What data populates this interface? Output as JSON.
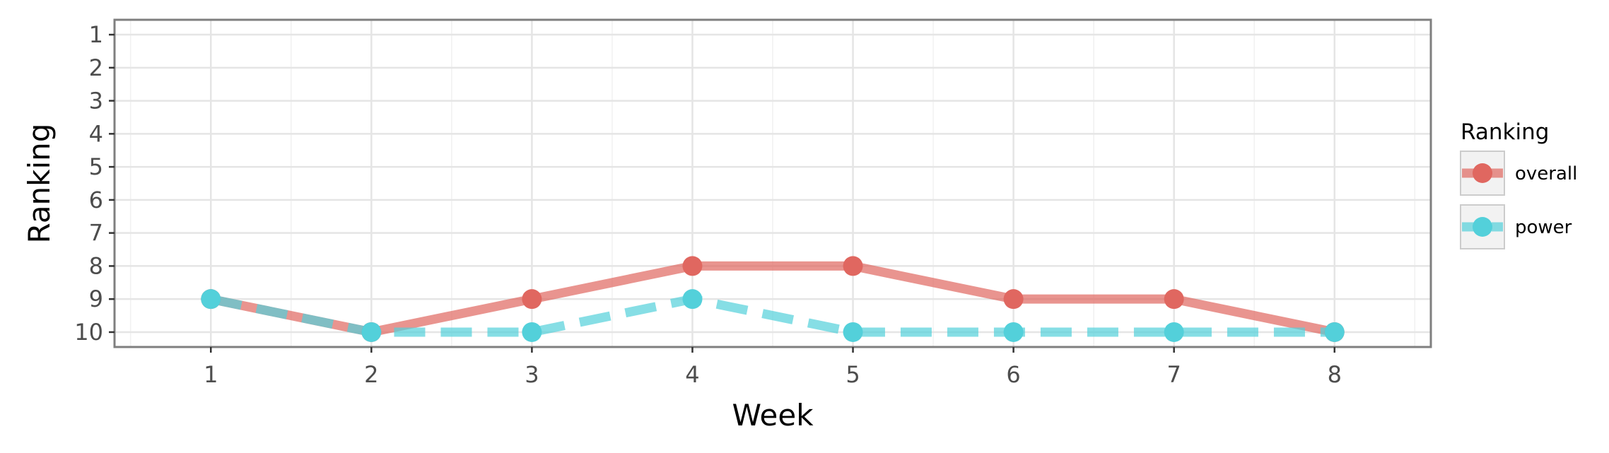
{
  "chart_data": {
    "type": "line",
    "xlabel": "Week",
    "ylabel": "Ranking",
    "x": [
      1,
      2,
      3,
      4,
      5,
      6,
      7,
      8
    ],
    "x_ticks": [
      "1",
      "2",
      "3",
      "4",
      "5",
      "6",
      "7",
      "8"
    ],
    "y_ticks": [
      "1",
      "2",
      "3",
      "4",
      "5",
      "6",
      "7",
      "8",
      "9",
      "10"
    ],
    "xlim": [
      0.4,
      8.6
    ],
    "ylim": [
      0.55,
      10.45
    ],
    "y_reversed": true,
    "grid": true,
    "legend": {
      "title": "Ranking",
      "placement": "right"
    },
    "series": [
      {
        "name": "overall",
        "values": [
          9,
          10,
          9,
          8,
          8,
          9,
          9,
          10
        ],
        "color": "#e06760",
        "line_style": "solid"
      },
      {
        "name": "power",
        "values": [
          9,
          10,
          10,
          9,
          10,
          10,
          10,
          10
        ],
        "color": "#53d0da",
        "line_style": "dashed"
      }
    ]
  }
}
